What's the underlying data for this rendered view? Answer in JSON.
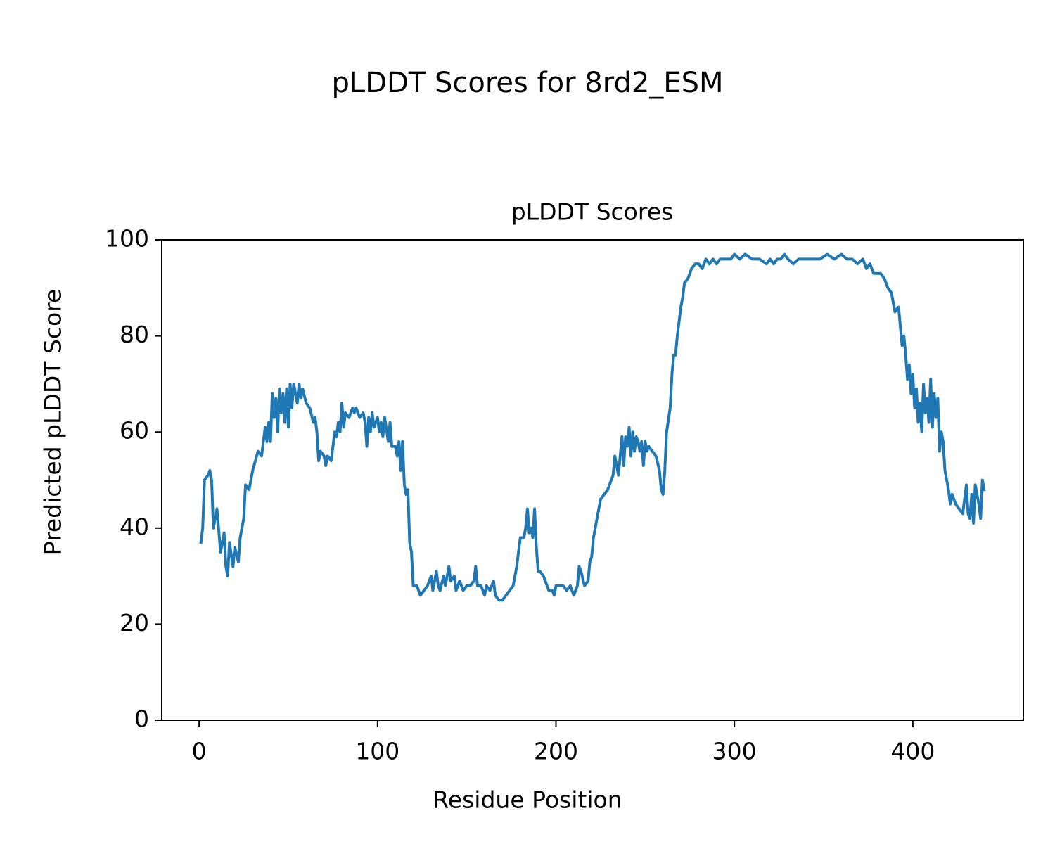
{
  "chart_data": {
    "type": "line",
    "title": "pLDDT Scores for 8rd2_ESM",
    "subtitle": "pLDDT Scores",
    "xlabel": "Residue Position",
    "ylabel": "Predicted pLDDT Score",
    "xlim": [
      -20.95,
      461.95
    ],
    "xticks": [
      0,
      100,
      200,
      300,
      400
    ],
    "ylim": [
      0,
      100
    ],
    "yticks": [
      0,
      20,
      40,
      60,
      80,
      100
    ],
    "grid": false,
    "series": [
      {
        "name": "pLDDT",
        "color": "#1f77b4",
        "x": [
          1,
          2,
          3,
          5,
          6,
          7,
          8,
          10,
          12,
          14,
          15,
          16,
          17,
          19,
          20,
          22,
          23,
          25,
          26,
          28,
          30,
          33,
          35,
          37,
          38,
          39,
          40,
          41,
          42,
          43,
          44,
          45,
          46,
          47,
          48,
          49,
          50,
          51,
          52,
          53,
          55,
          56,
          57,
          58,
          60,
          62,
          64,
          65,
          66,
          67,
          68,
          70,
          71,
          72,
          74,
          76,
          77,
          78,
          79,
          80,
          81,
          82,
          84,
          86,
          87,
          88,
          90,
          92,
          93,
          94,
          95,
          96,
          97,
          98,
          100,
          101,
          102,
          103,
          104,
          106,
          107,
          108,
          110,
          111,
          112,
          113,
          114,
          115,
          116,
          117,
          118,
          119,
          120,
          122,
          124,
          126,
          128,
          130,
          131,
          133,
          134,
          135,
          137,
          138,
          140,
          141,
          143,
          144,
          146,
          148,
          150,
          152,
          154,
          155,
          156,
          158,
          160,
          161,
          163,
          165,
          166,
          168,
          170,
          172,
          174,
          176,
          178,
          180,
          182,
          183,
          184,
          185,
          186,
          187,
          188,
          189,
          190,
          191,
          193,
          195,
          196,
          198,
          199,
          200,
          202,
          204,
          206,
          208,
          210,
          212,
          213,
          214,
          216,
          218,
          219,
          220,
          221,
          223,
          225,
          227,
          229,
          230,
          232,
          233,
          235,
          236,
          237,
          238,
          239,
          240,
          241,
          242,
          243,
          244,
          245,
          246,
          247,
          248,
          249,
          250,
          251,
          252,
          254,
          256,
          258,
          259,
          260,
          261,
          262,
          264,
          265,
          266,
          267,
          268,
          270,
          271,
          272,
          274,
          276,
          278,
          280,
          282,
          284,
          286,
          288,
          290,
          292,
          295,
          298,
          300,
          303,
          306,
          310,
          314,
          318,
          320,
          322,
          324,
          326,
          328,
          330,
          333,
          336,
          340,
          344,
          348,
          352,
          356,
          360,
          363,
          366,
          369,
          372,
          374,
          376,
          378,
          380,
          382,
          384,
          386,
          388,
          390,
          392,
          394,
          395,
          396,
          397,
          398,
          399,
          400,
          401,
          402,
          403,
          404,
          405,
          406,
          407,
          408,
          409,
          410,
          411,
          412,
          413,
          414,
          415,
          416,
          417,
          418,
          420,
          421,
          422,
          424,
          426,
          428,
          430,
          431,
          432,
          433,
          434,
          435,
          436,
          437,
          438,
          439,
          440
        ],
        "values": [
          37,
          40,
          50,
          51,
          52,
          50,
          40,
          44,
          35,
          39,
          32,
          30,
          37,
          32,
          36,
          33,
          38,
          42,
          49,
          48,
          52,
          56,
          55,
          61,
          58,
          62,
          58,
          68,
          63,
          67,
          60,
          69,
          64,
          68,
          62,
          69,
          61,
          70,
          65,
          70,
          66,
          70,
          67,
          69,
          66,
          65,
          62,
          63,
          60,
          54,
          56,
          55,
          53,
          55,
          54,
          60,
          59,
          62,
          60,
          66,
          61,
          64,
          63,
          65,
          64,
          65,
          63,
          64,
          62,
          57,
          63,
          60,
          64,
          61,
          63,
          60,
          62,
          59,
          63,
          58,
          62,
          57,
          57,
          55,
          58,
          52,
          58,
          49,
          47,
          48,
          37,
          35,
          28,
          28,
          26,
          27,
          28,
          30,
          27,
          31,
          28,
          27,
          30,
          28,
          32,
          29,
          30,
          27,
          29,
          27,
          28,
          28,
          29,
          32,
          28,
          28,
          26,
          28,
          27,
          29,
          26,
          25,
          25,
          26,
          27,
          28,
          32,
          38,
          38,
          40,
          44,
          39,
          40,
          38,
          44,
          36,
          31,
          31,
          30,
          28,
          27,
          27,
          26,
          28,
          28,
          28,
          27,
          28,
          26,
          28,
          32,
          31,
          28,
          29,
          33,
          34,
          38,
          42,
          46,
          47,
          48,
          49,
          51,
          55,
          51,
          55,
          59,
          53,
          59,
          57,
          61,
          55,
          60,
          56,
          59,
          58,
          56,
          58,
          53,
          58,
          56,
          57,
          56,
          55,
          52,
          48,
          47,
          52,
          60,
          65,
          72,
          76,
          76,
          80,
          86,
          88,
          91,
          92,
          94,
          95,
          95,
          94,
          96,
          95,
          96,
          95,
          96,
          96,
          96,
          97,
          96,
          97,
          96,
          96,
          95,
          96,
          95,
          96,
          96,
          97,
          96,
          95,
          96,
          96,
          96,
          96,
          97,
          96,
          97,
          96,
          96,
          95,
          96,
          94,
          95,
          93,
          93,
          93,
          92,
          90,
          89,
          85,
          86,
          78,
          80,
          76,
          71,
          74,
          68,
          72,
          65,
          69,
          62,
          66,
          60,
          70,
          64,
          67,
          62,
          71,
          61,
          68,
          63,
          67,
          56,
          60,
          58,
          52,
          48,
          45,
          47,
          45,
          44,
          43,
          49,
          43,
          42,
          47,
          41,
          49,
          47,
          45,
          42,
          50,
          48
        ]
      }
    ]
  }
}
